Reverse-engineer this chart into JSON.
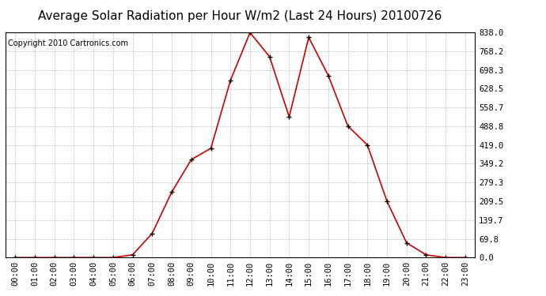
{
  "title": "Average Solar Radiation per Hour W/m2 (Last 24 Hours) 20100726",
  "copyright": "Copyright 2010 Cartronics.com",
  "hours": [
    "00:00",
    "01:00",
    "02:00",
    "03:00",
    "04:00",
    "05:00",
    "06:00",
    "07:00",
    "08:00",
    "09:00",
    "10:00",
    "11:00",
    "12:00",
    "13:00",
    "14:00",
    "15:00",
    "16:00",
    "17:00",
    "18:00",
    "19:00",
    "20:00",
    "21:00",
    "22:00",
    "23:00"
  ],
  "values": [
    0.0,
    0.0,
    0.0,
    0.0,
    0.0,
    0.0,
    10.0,
    90.0,
    244.0,
    365.0,
    407.0,
    660.0,
    838.0,
    748.0,
    524.0,
    820.0,
    678.0,
    490.0,
    419.0,
    209.5,
    55.0,
    10.0,
    0.0,
    0.0
  ],
  "line_color": "#cc0000",
  "marker_color": "#000000",
  "bg_color": "#ffffff",
  "grid_color": "#c0c0c0",
  "yticks": [
    0.0,
    69.8,
    139.7,
    209.5,
    279.3,
    349.2,
    419.0,
    488.8,
    558.7,
    628.5,
    698.3,
    768.2,
    838.0
  ],
  "ymax": 838.0,
  "ymin": 0.0,
  "title_fontsize": 11,
  "copyright_fontsize": 7,
  "tick_fontsize": 7.5
}
